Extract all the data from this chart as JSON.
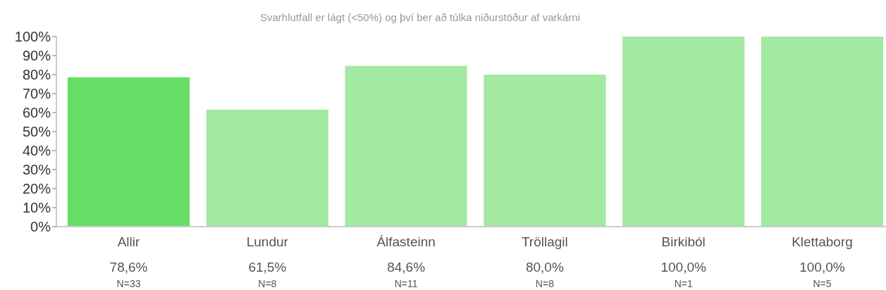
{
  "chart_data": {
    "type": "bar",
    "subtitle": "Svarhlutfall er lágt (<50%) og því ber að túlka niðurstöður af varkárni",
    "categories": [
      "Allir",
      "Lundur",
      "Álfasteinn",
      "Tröllagil",
      "Birkiból",
      "Klettaborg"
    ],
    "values": [
      78.6,
      61.5,
      84.6,
      80.0,
      100.0,
      100.0
    ],
    "colors": [
      "#66dd66",
      "#a3e8a3",
      "#a3e8a3",
      "#a3e8a3",
      "#a3e8a3",
      "#a3e8a3"
    ],
    "value_labels": [
      "78,6%",
      "61,5%",
      "84,6%",
      "80,0%",
      "100,0%",
      "100,0%"
    ],
    "ylim": [
      0,
      100
    ],
    "yticks": [
      {
        "value": 0,
        "label": "0%"
      },
      {
        "value": 10,
        "label": "10%"
      },
      {
        "value": 20,
        "label": "20%"
      },
      {
        "value": 30,
        "label": "30%"
      },
      {
        "value": 40,
        "label": "40%"
      },
      {
        "value": 50,
        "label": "50%"
      },
      {
        "value": 60,
        "label": "60%"
      },
      {
        "value": 70,
        "label": "70%"
      },
      {
        "value": 80,
        "label": "80%"
      },
      {
        "value": 90,
        "label": "90%"
      },
      {
        "value": 100,
        "label": "100%"
      }
    ],
    "annotations": [
      "N=33",
      "N=8",
      "N=11",
      "N=8",
      "N=1",
      "N=5"
    ],
    "grid": false
  }
}
